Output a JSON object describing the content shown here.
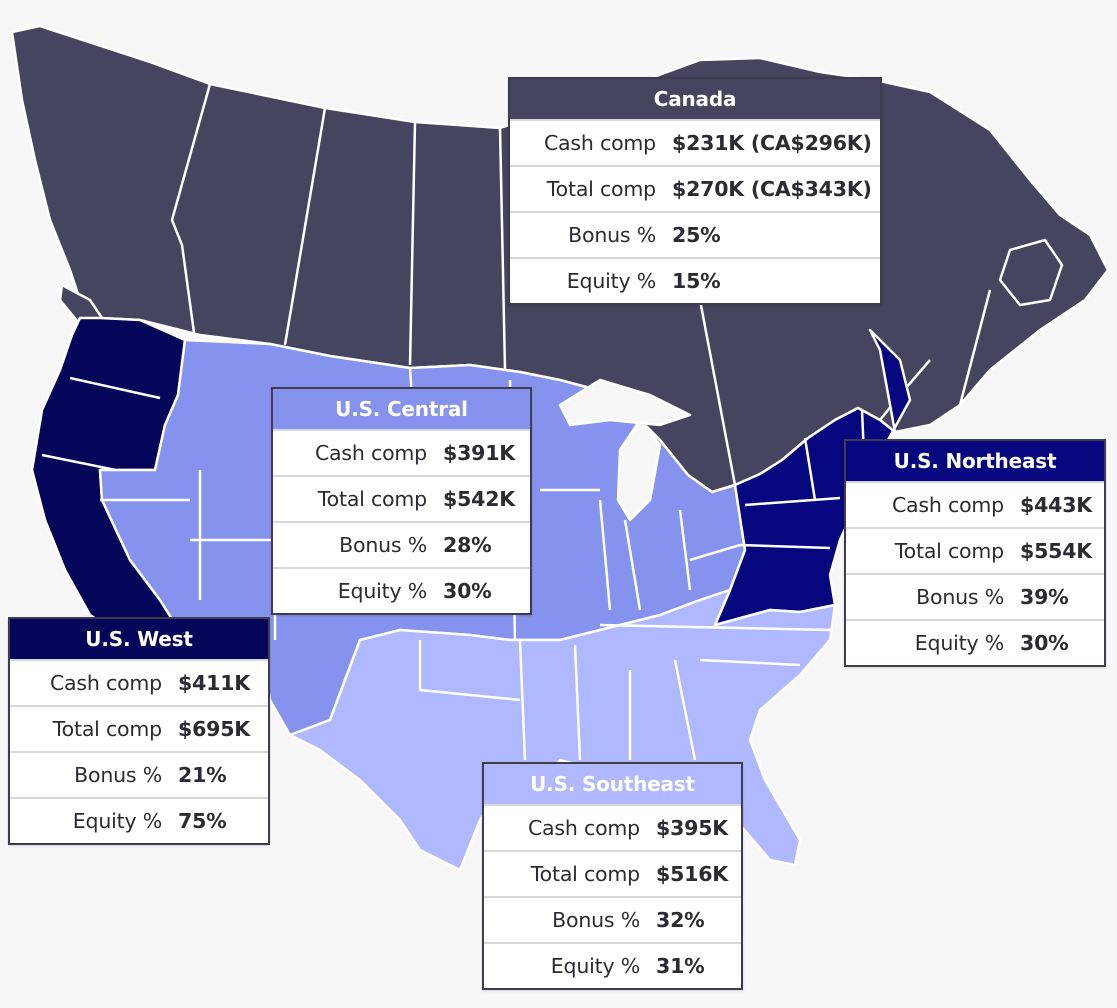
{
  "regions": {
    "canada": {
      "name": "Canada",
      "color": "#45455f",
      "cash_comp": "$231K (CA$296K)",
      "total_comp": "$270K (CA$343K)",
      "bonus_pct": "25%",
      "equity_pct": "15%"
    },
    "us_central": {
      "name": "U.S. Central",
      "color": "#8593ee",
      "cash_comp": "$391K",
      "total_comp": "$542K",
      "bonus_pct": "28%",
      "equity_pct": "30%"
    },
    "us_northeast": {
      "name": "U.S. Northeast",
      "color": "#06067e",
      "cash_comp": "$443K",
      "total_comp": "$554K",
      "bonus_pct": "39%",
      "equity_pct": "30%"
    },
    "us_west": {
      "name": "U.S. West",
      "color": "#05055a",
      "cash_comp": "$411K",
      "total_comp": "$695K",
      "bonus_pct": "21%",
      "equity_pct": "75%"
    },
    "us_southeast": {
      "name": "U.S. Southeast",
      "color": "#b0b8ff",
      "cash_comp": "$395K",
      "total_comp": "$516K",
      "bonus_pct": "32%",
      "equity_pct": "31%"
    }
  },
  "labels": {
    "cash_comp": "Cash comp",
    "total_comp": "Total comp",
    "bonus_pct": "Bonus %",
    "equity_pct": "Equity %"
  },
  "colors": {
    "background": "#f7f7f7",
    "border": "#ffffff"
  }
}
